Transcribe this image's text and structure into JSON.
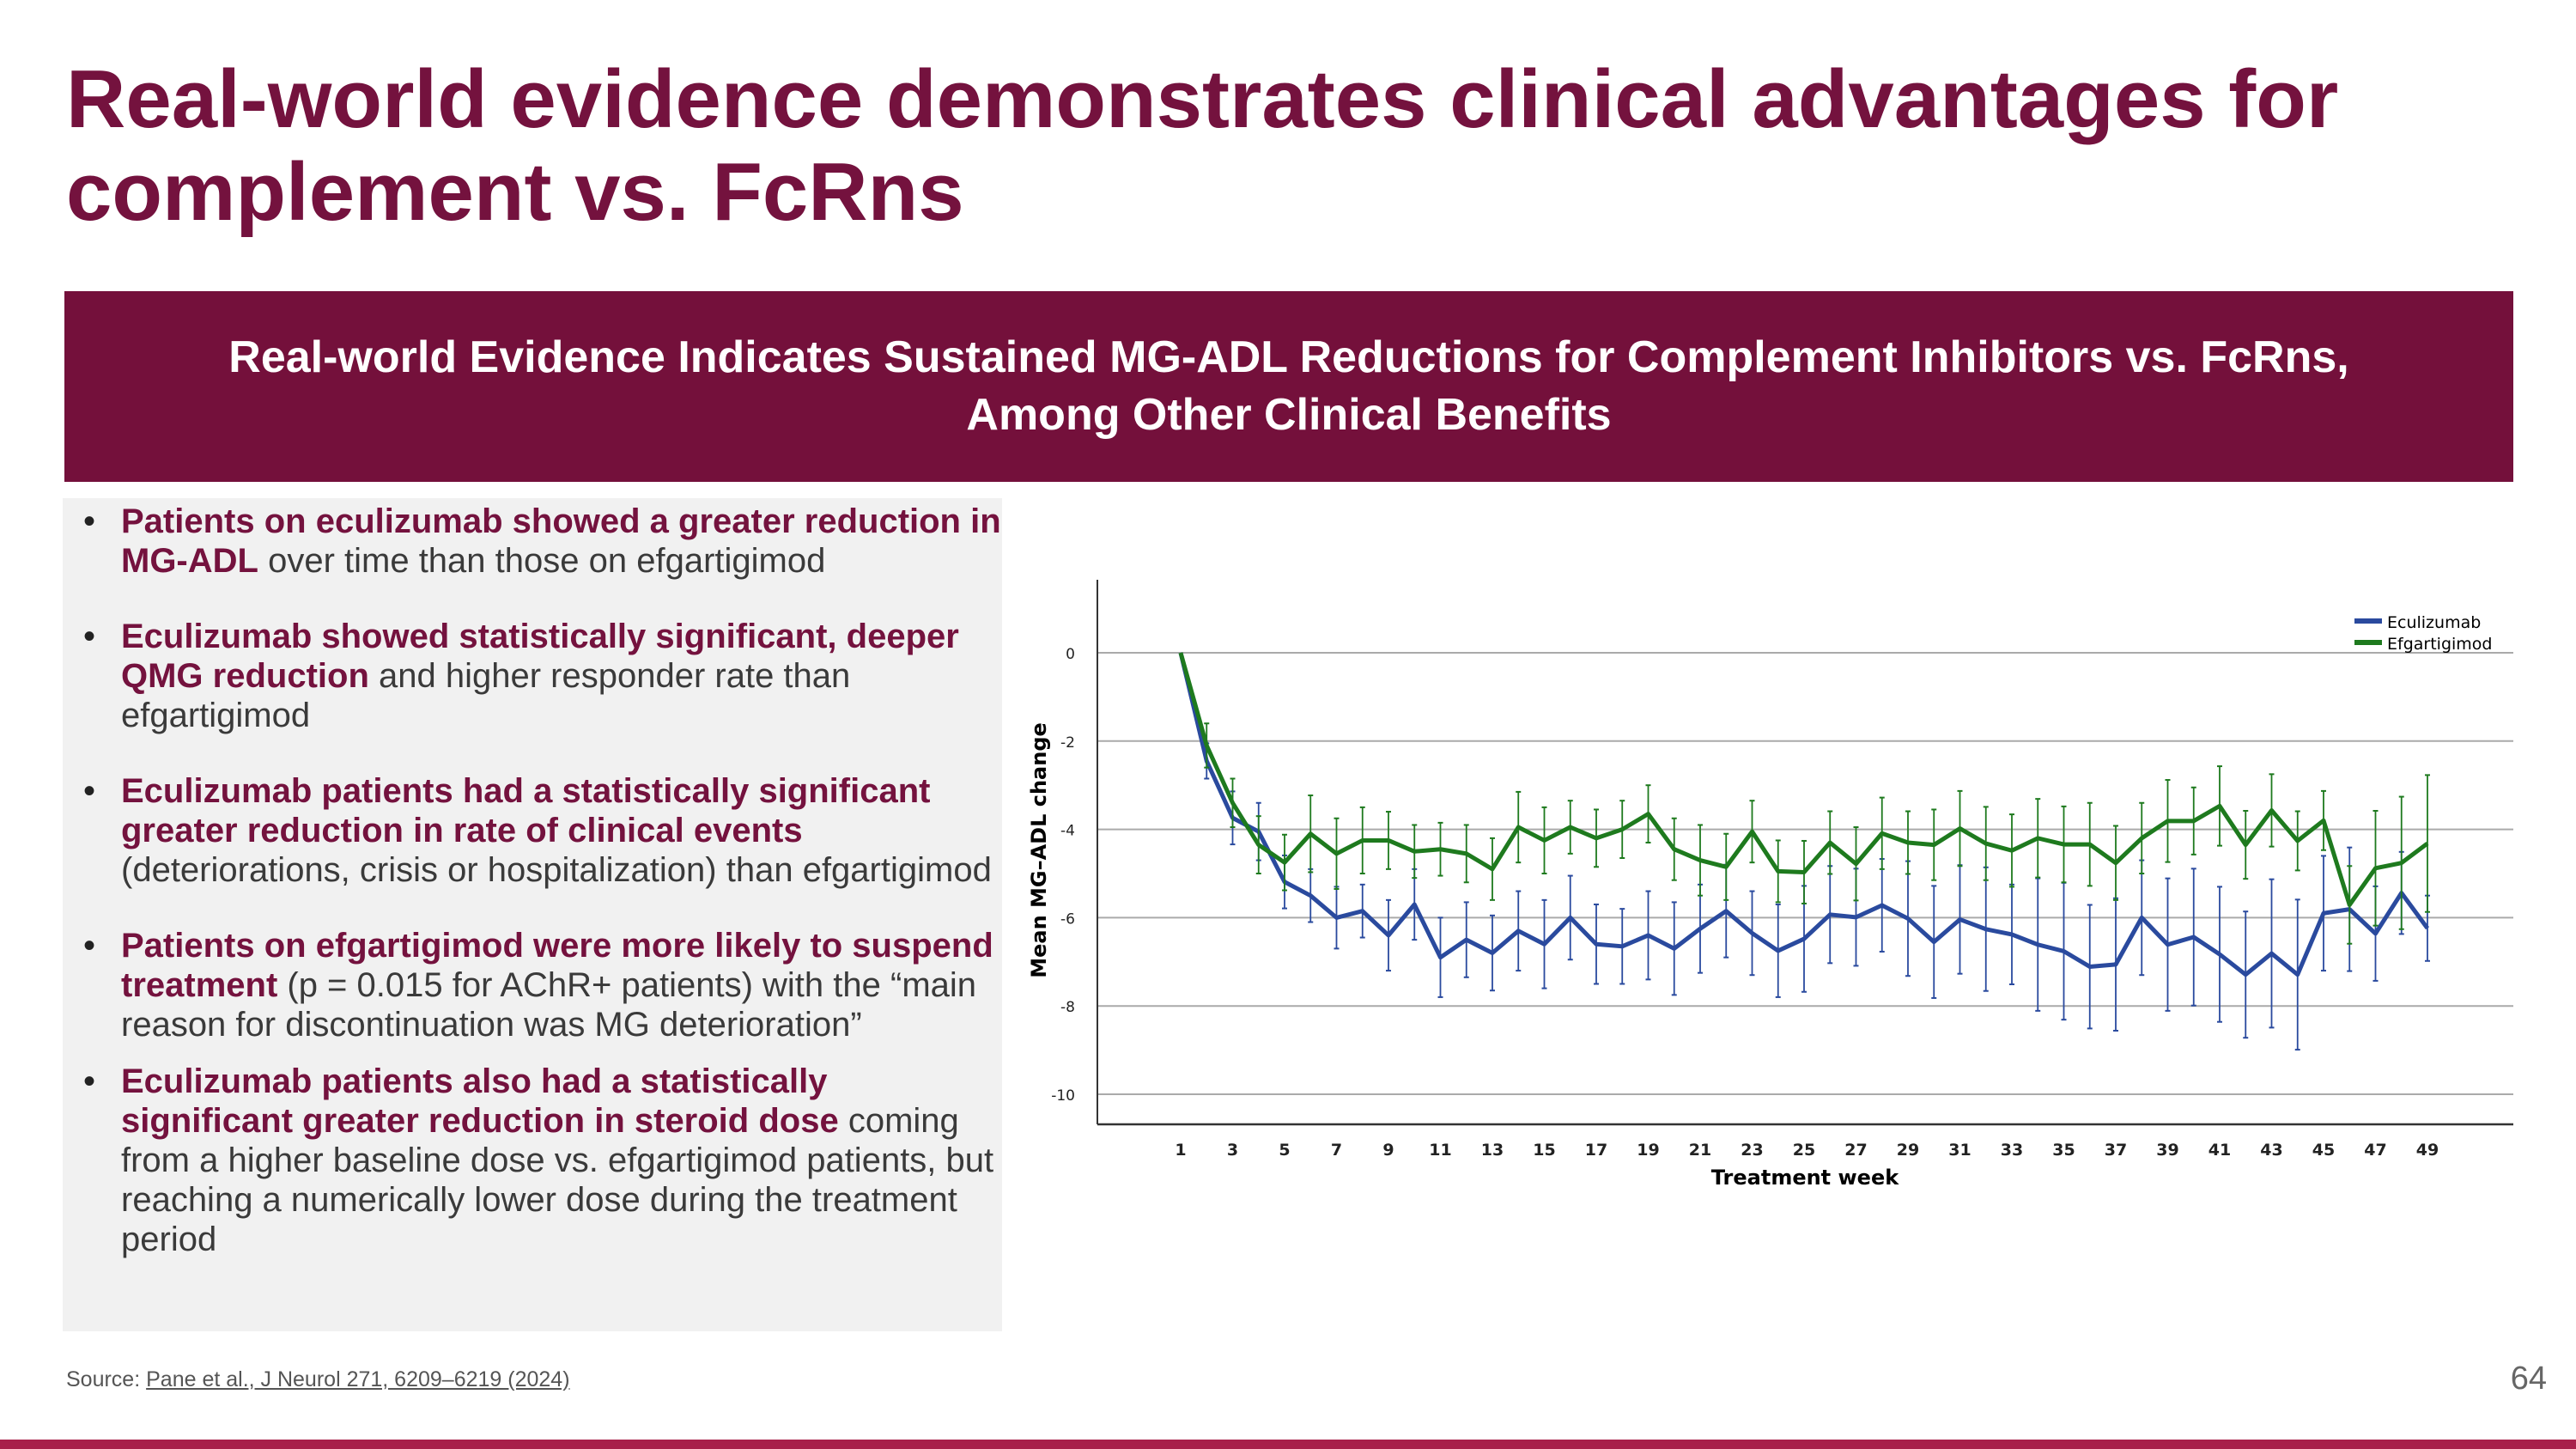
{
  "title": "Real-world evidence demonstrates clinical advantages for complement vs. FcRns",
  "banner": {
    "line1": "Real-world Evidence Indicates Sustained MG-ADL Reductions for Complement Inhibitors vs. FcRns,",
    "line2": "Among Other Clinical Benefits"
  },
  "bullets": [
    {
      "bold": "Patients on eculizumab showed a greater reduction in MG-ADL",
      "rest": " over time than those on efgartigimod"
    },
    {
      "bold": "Eculizumab showed statistically significant, deeper QMG reduction",
      "rest": " and higher responder rate than efgartigimod"
    },
    {
      "bold": "Eculizumab patients had a statistically significant greater reduction in rate of clinical events",
      "rest": " (deteriorations, crisis or hospitalization) than efgartigimod"
    },
    {
      "bold": "Patients on efgartigimod were more likely to suspend treatment",
      "rest": " (p = 0.015 for AChR+ patients) with the “main reason for discontinuation was MG deterioration”"
    },
    {
      "bold": "Eculizumab patients also had a statistically significant greater reduction in steroid dose",
      "rest": " coming from a higher baseline dose vs. efgartigimod patients, but reaching a numerically lower dose during the treatment period"
    }
  ],
  "footer": {
    "source_label": "Source: ",
    "source_link": "Pane et al., J Neurol 271, 6209–6219 (2024)",
    "page_number": "64"
  },
  "colors": {
    "brand": "#74123e",
    "accent_bar": "#a8204a",
    "eculizumab": "#2a4a9e",
    "efgartigimod": "#1e7a1e"
  },
  "chart_data": {
    "type": "line",
    "xlabel": "Treatment week",
    "ylabel": "Mean MG–ADL change",
    "ylim": [
      -10.5,
      1.6
    ],
    "yticks": [
      0,
      -2,
      -4,
      -6,
      -8,
      -10
    ],
    "xticks": [
      1,
      3,
      5,
      7,
      9,
      11,
      13,
      15,
      17,
      19,
      21,
      23,
      25,
      27,
      29,
      31,
      33,
      35,
      37,
      39,
      41,
      43,
      45,
      47,
      49
    ],
    "grid": "horizontal",
    "legend": "top-right",
    "x": [
      1,
      2,
      3,
      4,
      5,
      6,
      7,
      8,
      9,
      10,
      11,
      12,
      13,
      14,
      15,
      16,
      17,
      18,
      19,
      20,
      21,
      22,
      23,
      24,
      25,
      26,
      27,
      28,
      29,
      30,
      31,
      32,
      33,
      34,
      35,
      36,
      37,
      38,
      39,
      40,
      41,
      42,
      43,
      44,
      45,
      46,
      47,
      48,
      49
    ],
    "series": [
      {
        "name": "Eculizumab",
        "values": [
          0,
          -2.45,
          -3.74,
          -4.05,
          -5.19,
          -5.5,
          -6.0,
          -5.85,
          -6.4,
          -5.7,
          -6.9,
          -6.5,
          -6.8,
          -6.3,
          -6.6,
          -6.0,
          -6.6,
          -6.65,
          -6.4,
          -6.7,
          -6.25,
          -5.85,
          -6.35,
          -6.75,
          -6.48,
          -5.93,
          -5.99,
          -5.72,
          -6.02,
          -6.55,
          -6.04,
          -6.26,
          -6.38,
          -6.61,
          -6.76,
          -7.11,
          -7.06,
          -6.0,
          -6.61,
          -6.44,
          -6.83,
          -7.29,
          -6.81,
          -7.29,
          -5.9,
          -5.81,
          -6.36,
          -5.44,
          -6.24
        ],
        "error": [
          0,
          0.4,
          0.6,
          0.65,
          0.6,
          0.6,
          0.7,
          0.6,
          0.8,
          0.8,
          0.9,
          0.85,
          0.85,
          0.9,
          1.0,
          0.95,
          0.9,
          0.85,
          1.0,
          1.05,
          1.0,
          1.05,
          0.95,
          1.05,
          1.2,
          1.1,
          1.1,
          1.05,
          1.3,
          1.27,
          1.23,
          1.4,
          1.13,
          1.5,
          1.55,
          1.4,
          1.5,
          1.3,
          1.5,
          1.55,
          1.53,
          1.43,
          1.68,
          1.7,
          1.3,
          1.4,
          1.07,
          0.93,
          0.74
        ]
      },
      {
        "name": "Efgartigimod",
        "values": [
          0,
          -2.1,
          -3.4,
          -4.35,
          -4.75,
          -4.1,
          -4.55,
          -4.25,
          -4.25,
          -4.5,
          -4.45,
          -4.55,
          -4.9,
          -3.95,
          -4.25,
          -3.95,
          -4.2,
          -4.0,
          -3.65,
          -4.45,
          -4.7,
          -4.85,
          -4.05,
          -4.95,
          -4.97,
          -4.3,
          -4.78,
          -4.09,
          -4.3,
          -4.35,
          -3.98,
          -4.32,
          -4.48,
          -4.2,
          -4.34,
          -4.34,
          -4.76,
          -4.2,
          -3.81,
          -3.81,
          -3.47,
          -4.35,
          -3.57,
          -4.26,
          -3.8,
          -5.71,
          -4.88,
          -4.76,
          -4.32
        ],
        "error": [
          0,
          0.5,
          0.55,
          0.65,
          0.63,
          0.87,
          0.8,
          0.75,
          0.65,
          0.6,
          0.6,
          0.65,
          0.7,
          0.8,
          0.75,
          0.6,
          0.65,
          0.65,
          0.65,
          0.7,
          0.8,
          0.75,
          0.7,
          0.7,
          0.71,
          0.71,
          0.83,
          0.81,
          0.71,
          0.8,
          0.85,
          0.83,
          0.82,
          0.89,
          0.86,
          0.94,
          0.84,
          0.8,
          0.93,
          0.76,
          0.9,
          0.77,
          0.82,
          0.67,
          0.67,
          0.88,
          1.3,
          1.5,
          1.55
        ]
      }
    ]
  }
}
